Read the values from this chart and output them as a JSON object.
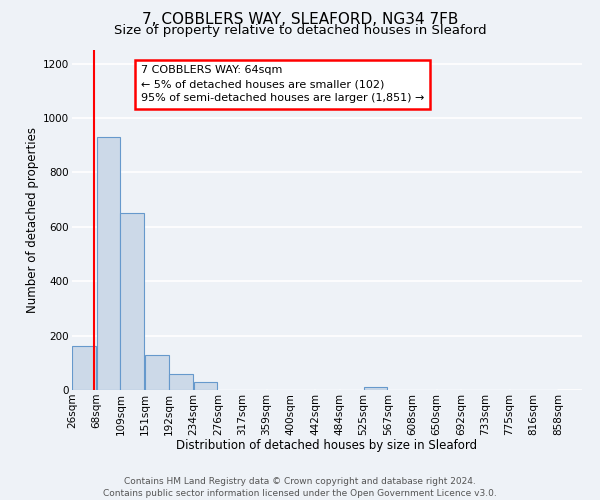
{
  "title": "7, COBBLERS WAY, SLEAFORD, NG34 7FB",
  "subtitle": "Size of property relative to detached houses in Sleaford",
  "xlabel": "Distribution of detached houses by size in Sleaford",
  "ylabel": "Number of detached properties",
  "bar_left_edges": [
    26,
    68,
    109,
    151,
    192,
    234,
    276,
    317,
    359,
    400,
    442,
    484,
    525,
    567,
    608,
    650,
    692,
    733,
    775,
    816
  ],
  "bar_heights": [
    160,
    930,
    650,
    130,
    60,
    30,
    0,
    0,
    0,
    0,
    0,
    0,
    10,
    0,
    0,
    0,
    0,
    0,
    0,
    0
  ],
  "bin_width": 41,
  "bar_color": "#ccd9e8",
  "bar_edge_color": "#6699cc",
  "xtick_labels": [
    "26sqm",
    "68sqm",
    "109sqm",
    "151sqm",
    "192sqm",
    "234sqm",
    "276sqm",
    "317sqm",
    "359sqm",
    "400sqm",
    "442sqm",
    "484sqm",
    "525sqm",
    "567sqm",
    "608sqm",
    "650sqm",
    "692sqm",
    "733sqm",
    "775sqm",
    "816sqm",
    "858sqm"
  ],
  "ylim": [
    0,
    1250
  ],
  "yticks": [
    0,
    200,
    400,
    600,
    800,
    1000,
    1200
  ],
  "red_line_x": 64,
  "annotation_line1": "7 COBBLERS WAY: 64sqm",
  "annotation_line2": "← 5% of detached houses are smaller (102)",
  "annotation_line3": "95% of semi-detached houses are larger (1,851) →",
  "footer_line1": "Contains HM Land Registry data © Crown copyright and database right 2024.",
  "footer_line2": "Contains public sector information licensed under the Open Government Licence v3.0.",
  "background_color": "#eef2f7",
  "plot_bg_color": "#eef2f7",
  "grid_color": "#ffffff",
  "title_fontsize": 11,
  "subtitle_fontsize": 9.5,
  "axis_label_fontsize": 8.5,
  "tick_fontsize": 7.5,
  "footer_fontsize": 6.5
}
